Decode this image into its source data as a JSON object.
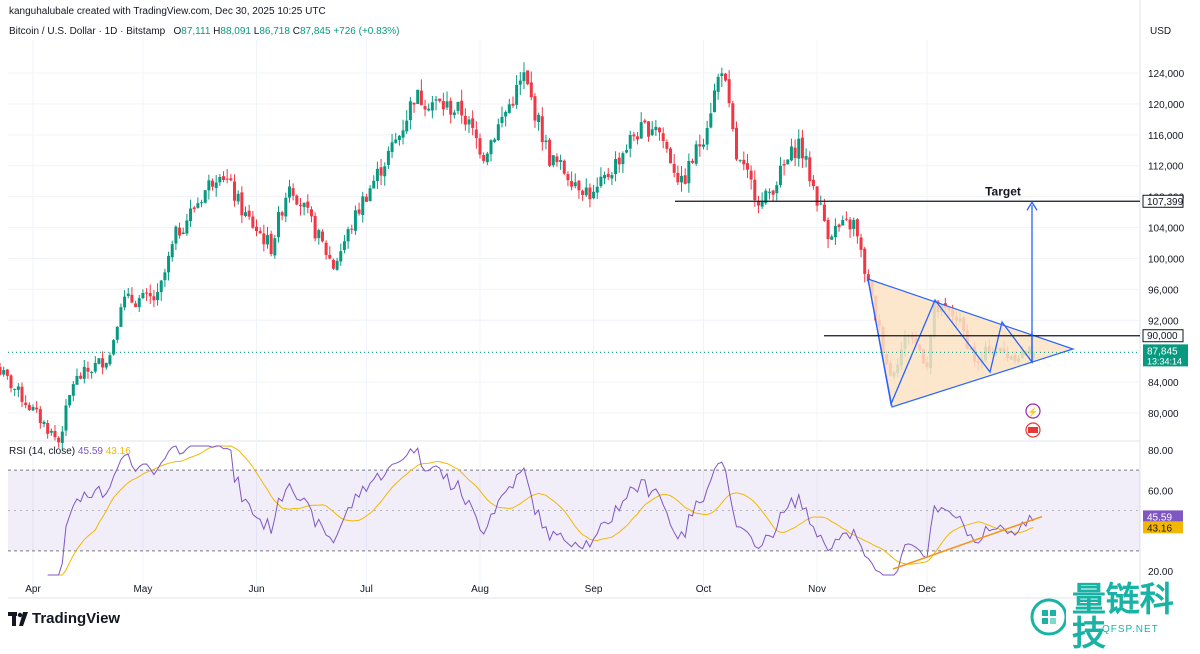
{
  "header": {
    "created_by": "kanguhalubale created with TradingView.com, Dec 30, 2025 10:25 UTC",
    "symbol": "Bitcoin / U.S. Dollar · 1D · Bitstamp",
    "open_label": "O",
    "open": "87,111",
    "high_label": "H",
    "high": "88,091",
    "low_label": "L",
    "low": "86,718",
    "close_label": "C",
    "close": "87,845",
    "change": "+726 (+0.83%)"
  },
  "axis": {
    "currency": "USD"
  },
  "rsi": {
    "label": "RSI (14, close)",
    "value": "45.59",
    "ma": "43.16"
  },
  "footer": {
    "brand": "TradingView"
  },
  "watermark": {
    "text": "量链科技",
    "sub": "QFSP.NET"
  },
  "colors": {
    "up": "#089981",
    "down": "#F23645",
    "rsi": "#7E57C2",
    "rsi_ma": "#F2B705",
    "pattern_fill": "#FBE3C4",
    "pattern_stroke": "#2962FF",
    "trend": "#F7931A"
  },
  "chart_data": [
    {
      "type": "candlestick",
      "title": "Bitcoin / U.S. Dollar · 1D · Bitstamp",
      "x_ticks": [
        "Apr",
        "May",
        "Jun",
        "Jul",
        "Aug",
        "Sep",
        "Oct",
        "Nov",
        "Dec"
      ],
      "y_ticks": [
        "124,000",
        "120,000",
        "116,000",
        "112,000",
        "108,000",
        "104,000",
        "100,000",
        "96,000",
        "92,000",
        "88,000",
        "84,000",
        "80,000"
      ],
      "ylim": [
        78000,
        127000
      ],
      "price_path": [
        [
          "2025-03-22",
          86000
        ],
        [
          "2025-04-08",
          76300
        ],
        [
          "2025-04-12",
          84000
        ],
        [
          "2025-04-22",
          87500
        ],
        [
          "2025-04-25",
          94500
        ],
        [
          "2025-05-05",
          94800
        ],
        [
          "2025-05-10",
          103000
        ],
        [
          "2025-05-22",
          111700
        ],
        [
          "2025-05-29",
          105500
        ],
        [
          "2025-06-05",
          101500
        ],
        [
          "2025-06-10",
          110000
        ],
        [
          "2025-06-22",
          99000
        ],
        [
          "2025-06-30",
          107500
        ],
        [
          "2025-07-10",
          116000
        ],
        [
          "2025-07-14",
          121000
        ],
        [
          "2025-07-27",
          119000
        ],
        [
          "2025-08-02",
          113500
        ],
        [
          "2025-08-13",
          123500
        ],
        [
          "2025-08-20",
          113000
        ],
        [
          "2025-09-01",
          108000
        ],
        [
          "2025-09-12",
          116000
        ],
        [
          "2025-09-18",
          117500
        ],
        [
          "2025-09-25",
          109500
        ],
        [
          "2025-10-01",
          116000
        ],
        [
          "2025-10-06",
          125000
        ],
        [
          "2025-10-10",
          113000
        ],
        [
          "2025-10-17",
          107000
        ],
        [
          "2025-10-27",
          115000
        ],
        [
          "2025-11-04",
          103500
        ],
        [
          "2025-11-11",
          104500
        ],
        [
          "2025-11-17",
          92500
        ],
        [
          "2025-11-21",
          84800
        ],
        [
          "2025-11-26",
          90500
        ],
        [
          "2025-12-01",
          86500
        ],
        [
          "2025-12-03",
          93500
        ],
        [
          "2025-12-09",
          92500
        ],
        [
          "2025-12-15",
          86000
        ],
        [
          "2025-12-18",
          88500
        ],
        [
          "2025-12-23",
          87500
        ],
        [
          "2025-12-30",
          87845
        ]
      ],
      "last_price": "87,845",
      "countdown": "13:34:14",
      "levels": [
        {
          "label": "Target",
          "value": "107,399"
        },
        {
          "label": "",
          "value": "90,000"
        }
      ],
      "pattern": "symmetrical triangle"
    },
    {
      "type": "line",
      "title": "RSI (14, close)",
      "y_ticks": [
        "80.00",
        "60.00",
        "20.00"
      ],
      "ylim": [
        15,
        85
      ],
      "band": [
        30,
        70
      ],
      "series": [
        {
          "name": "RSI",
          "current": 45.59
        },
        {
          "name": "MA",
          "current": 43.16
        }
      ]
    }
  ]
}
